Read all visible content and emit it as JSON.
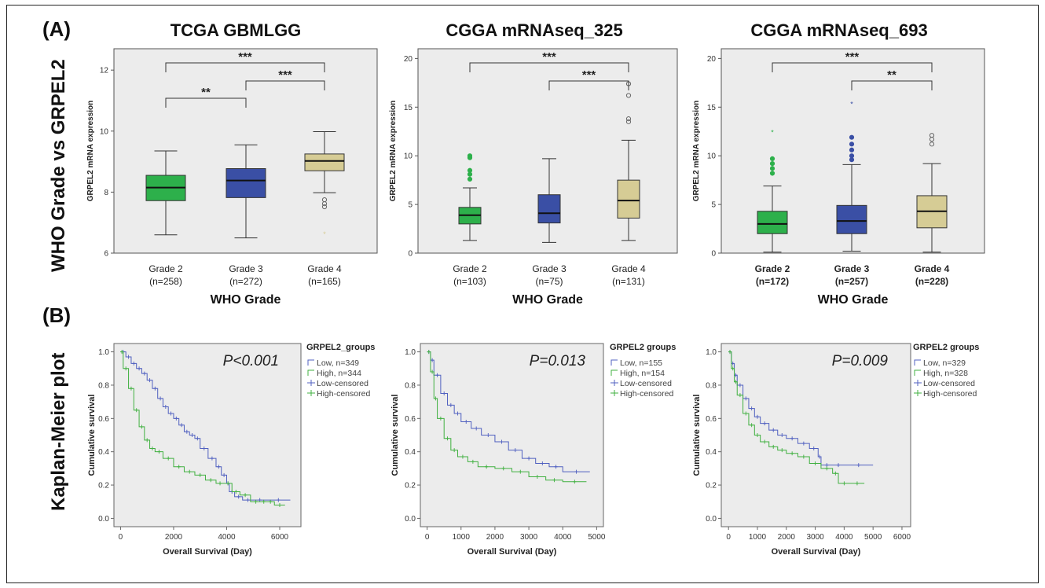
{
  "panel_a_label": "(A)",
  "panel_b_label": "(B)",
  "row_label_a": "WHO Grade  vs GRPEL2",
  "row_label_b": "Kaplan-Meier plot",
  "colors": {
    "grade2": "#2db04b",
    "grade3": "#3a4fa5",
    "grade4": "#d6cc95",
    "plot_bg": "#ececec",
    "km_low": "#5060c0",
    "km_high": "#40b040"
  },
  "chart_data": [
    {
      "type": "box",
      "title": "TCGA GBMLGG",
      "ylabel": "GRPEL2 mRNA expression",
      "xlabel": "WHO Grade",
      "ylim": [
        6,
        12.7
      ],
      "yticks": [
        6,
        8,
        10,
        12
      ],
      "bold_categories": false,
      "categories": [
        "Grade 2",
        "Grade 3",
        "Grade 4"
      ],
      "counts": [
        "(n=258)",
        "(n=272)",
        "(n=165)"
      ],
      "boxes": [
        {
          "min": 6.6,
          "q1": 7.72,
          "median": 8.15,
          "q3": 8.55,
          "max": 9.35,
          "outliers": [],
          "extremes": []
        },
        {
          "min": 6.5,
          "q1": 7.82,
          "median": 8.38,
          "q3": 8.77,
          "max": 9.55,
          "outliers": [],
          "extremes": []
        },
        {
          "min": 7.98,
          "q1": 8.7,
          "median": 9.02,
          "q3": 9.25,
          "max": 9.98,
          "outliers": [
            7.52,
            7.62,
            7.75
          ],
          "extremes": [
            6.62
          ]
        }
      ],
      "brackets": [
        {
          "from": 0,
          "to": 1,
          "label": "**"
        },
        {
          "from": 1,
          "to": 2,
          "label": "***"
        },
        {
          "from": 0,
          "to": 2,
          "label": "***"
        }
      ]
    },
    {
      "type": "box",
      "title": "CGGA mRNAseq_325",
      "ylabel": "GRPEL2 mRNA expression",
      "xlabel": "WHO Grade",
      "ylim": [
        0,
        21
      ],
      "yticks": [
        0,
        5,
        10,
        15,
        20
      ],
      "bold_categories": false,
      "categories": [
        "Grade 2",
        "Grade 3",
        "Grade 4"
      ],
      "counts": [
        "(n=103)",
        "(n=75)",
        "(n=131)"
      ],
      "boxes": [
        {
          "min": 1.3,
          "q1": 3.0,
          "median": 3.9,
          "q3": 4.7,
          "max": 6.7,
          "outliers": [
            7.6,
            8.1,
            8.5,
            9.8,
            10.0
          ],
          "extremes": []
        },
        {
          "min": 1.1,
          "q1": 3.1,
          "median": 4.1,
          "q3": 6.0,
          "max": 9.7,
          "outliers": [],
          "extremes": []
        },
        {
          "min": 1.3,
          "q1": 3.6,
          "median": 5.4,
          "q3": 7.5,
          "max": 11.6,
          "outliers": [
            13.5,
            13.8,
            16.2,
            17.4
          ],
          "extremes": []
        }
      ],
      "brackets": [
        {
          "from": 1,
          "to": 2,
          "label": "***"
        },
        {
          "from": 0,
          "to": 2,
          "label": "***"
        }
      ]
    },
    {
      "type": "box",
      "title": "CGGA mRNAseq_693",
      "ylabel": "GRPEL2 mRNA expression",
      "xlabel": "WHO Grade",
      "ylim": [
        0,
        21
      ],
      "yticks": [
        0,
        5,
        10,
        15,
        20
      ],
      "bold_categories": true,
      "categories": [
        "Grade 2",
        "Grade 3",
        "Grade 4"
      ],
      "counts": [
        "(n=172)",
        "(n=257)",
        "(n=228)"
      ],
      "boxes": [
        {
          "min": 0.1,
          "q1": 2.0,
          "median": 3.0,
          "q3": 4.3,
          "max": 6.9,
          "outliers": [
            8.2,
            8.7,
            9.2,
            9.7
          ],
          "extremes": [
            12.4
          ]
        },
        {
          "min": 0.2,
          "q1": 2.0,
          "median": 3.3,
          "q3": 4.9,
          "max": 9.1,
          "outliers": [
            9.6,
            10.0,
            10.6,
            11.2,
            11.9
          ],
          "extremes": [
            15.3
          ]
        },
        {
          "min": 0.1,
          "q1": 2.6,
          "median": 4.3,
          "q3": 5.9,
          "max": 9.2,
          "outliers": [
            11.2,
            11.7,
            12.1
          ],
          "extremes": []
        }
      ],
      "brackets": [
        {
          "from": 1,
          "to": 2,
          "label": "**"
        },
        {
          "from": 0,
          "to": 2,
          "label": "***"
        }
      ]
    },
    {
      "type": "line",
      "subtype": "kaplan-meier",
      "xlabel": "Overall Survival (Day)",
      "ylabel": "Cumulative survival",
      "xlim": [
        -250,
        6800
      ],
      "xticks": [
        0,
        2000,
        4000,
        6000
      ],
      "ylim": [
        -0.05,
        1.05
      ],
      "yticks": [
        0.0,
        0.2,
        0.4,
        0.6,
        0.8,
        1.0
      ],
      "pvalue": "P<0.001",
      "legend_title": "GRPEL2_groups",
      "legend": [
        "Low, n=349",
        "High, n=344",
        "Low-censored",
        "High-censored"
      ],
      "series": [
        {
          "name": "Low",
          "x": [
            0,
            200,
            400,
            600,
            800,
            1000,
            1200,
            1400,
            1600,
            1800,
            2000,
            2200,
            2400,
            2600,
            2800,
            3000,
            3300,
            3600,
            3800,
            4000,
            4100,
            4300,
            4600,
            5000,
            5500,
            6400
          ],
          "y": [
            1.0,
            0.97,
            0.93,
            0.9,
            0.87,
            0.83,
            0.78,
            0.72,
            0.67,
            0.63,
            0.6,
            0.56,
            0.52,
            0.5,
            0.48,
            0.42,
            0.36,
            0.31,
            0.26,
            0.21,
            0.16,
            0.13,
            0.11,
            0.11,
            0.11,
            0.11
          ]
        },
        {
          "name": "High",
          "x": [
            0,
            100,
            300,
            500,
            700,
            900,
            1100,
            1300,
            1600,
            2000,
            2400,
            2800,
            3200,
            3600,
            3900,
            4200,
            4500,
            4900,
            5300,
            5500,
            5800,
            6200
          ],
          "y": [
            1.0,
            0.9,
            0.78,
            0.65,
            0.55,
            0.47,
            0.42,
            0.4,
            0.36,
            0.31,
            0.28,
            0.26,
            0.23,
            0.21,
            0.21,
            0.16,
            0.14,
            0.1,
            0.1,
            0.1,
            0.08,
            0.08
          ]
        }
      ]
    },
    {
      "type": "line",
      "subtype": "kaplan-meier",
      "xlabel": "Overall Survival (Day)",
      "ylabel": "Cumulative survival",
      "xlim": [
        -200,
        5200
      ],
      "xticks": [
        0,
        1000,
        2000,
        3000,
        4000,
        5000
      ],
      "ylim": [
        -0.05,
        1.05
      ],
      "yticks": [
        0.0,
        0.2,
        0.4,
        0.6,
        0.8,
        1.0
      ],
      "pvalue": "P=0.013",
      "legend_title": "GRPEL2 groups",
      "legend": [
        "Low, n=155",
        "High, n=154",
        "Low-censored",
        "High-censored"
      ],
      "series": [
        {
          "name": "Low",
          "x": [
            0,
            100,
            200,
            400,
            600,
            800,
            1000,
            1300,
            1600,
            2000,
            2400,
            2800,
            3200,
            3600,
            4000,
            4800
          ],
          "y": [
            1.0,
            0.95,
            0.86,
            0.75,
            0.68,
            0.63,
            0.58,
            0.54,
            0.5,
            0.46,
            0.41,
            0.36,
            0.33,
            0.31,
            0.28,
            0.28
          ]
        },
        {
          "name": "High",
          "x": [
            0,
            100,
            200,
            300,
            500,
            700,
            900,
            1200,
            1500,
            2000,
            2500,
            3000,
            3500,
            4000,
            4700
          ],
          "y": [
            1.0,
            0.88,
            0.72,
            0.6,
            0.48,
            0.41,
            0.37,
            0.34,
            0.31,
            0.3,
            0.28,
            0.25,
            0.23,
            0.22,
            0.22
          ]
        }
      ]
    },
    {
      "type": "line",
      "subtype": "kaplan-meier",
      "xlabel": "Overall Survival (Day)",
      "ylabel": "Cumulative survival",
      "xlim": [
        -250,
        6300
      ],
      "xticks": [
        0,
        1000,
        2000,
        3000,
        4000,
        5000,
        6000
      ],
      "ylim": [
        -0.05,
        1.05
      ],
      "yticks": [
        0.0,
        0.2,
        0.4,
        0.6,
        0.8,
        1.0
      ],
      "pvalue": "P=0.009",
      "legend_title": "GRPEL2 groups",
      "legend": [
        "Low, n=329",
        "High, n=328",
        "Low-censored",
        "High-censored"
      ],
      "series": [
        {
          "name": "Low",
          "x": [
            0,
            100,
            200,
            300,
            500,
            700,
            900,
            1100,
            1400,
            1700,
            2000,
            2400,
            2800,
            3100,
            3200,
            3600,
            4000,
            5000
          ],
          "y": [
            1.0,
            0.93,
            0.86,
            0.8,
            0.72,
            0.66,
            0.61,
            0.57,
            0.53,
            0.5,
            0.48,
            0.45,
            0.42,
            0.37,
            0.32,
            0.32,
            0.32,
            0.32
          ]
        },
        {
          "name": "High",
          "x": [
            0,
            100,
            200,
            300,
            500,
            700,
            900,
            1100,
            1400,
            1700,
            2000,
            2400,
            2800,
            3200,
            3600,
            3800,
            4200,
            4700
          ],
          "y": [
            1.0,
            0.9,
            0.82,
            0.74,
            0.63,
            0.56,
            0.5,
            0.46,
            0.43,
            0.41,
            0.39,
            0.37,
            0.33,
            0.3,
            0.27,
            0.21,
            0.21,
            0.21
          ]
        }
      ]
    }
  ]
}
